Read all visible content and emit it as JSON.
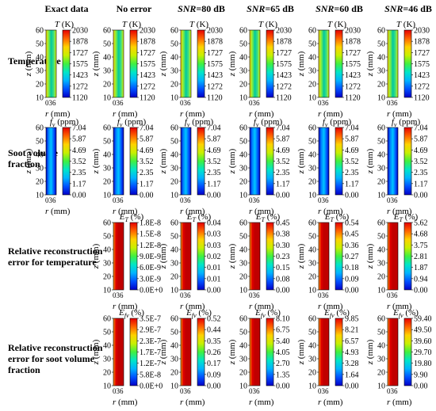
{
  "columns": [
    {
      "parts": [
        {
          "t": "Exact data",
          "i": false
        }
      ]
    },
    {
      "parts": [
        {
          "t": "No error",
          "i": false
        }
      ]
    },
    {
      "parts": [
        {
          "t": "SNR",
          "i": true
        },
        {
          "t": "=80 dB",
          "i": false
        }
      ]
    },
    {
      "parts": [
        {
          "t": "SNR",
          "i": true
        },
        {
          "t": "=65 dB",
          "i": false
        }
      ]
    },
    {
      "parts": [
        {
          "t": "SNR",
          "i": true
        },
        {
          "t": "=60 dB",
          "i": false
        }
      ]
    },
    {
      "parts": [
        {
          "t": "SNR",
          "i": true
        },
        {
          "t": "=46 dB",
          "i": false
        }
      ]
    }
  ],
  "rows": [
    {
      "label": "Temperature",
      "cb_var": "T",
      "cb_sub": "",
      "cb_unit": " (K)",
      "ticks": [
        "2030",
        "1878",
        "1727",
        "1575",
        "1423",
        "1272",
        "1120"
      ],
      "cols": [
        0,
        1,
        2,
        3,
        4,
        5
      ]
    },
    {
      "label": "Soot volume fraction",
      "cb_var": "f",
      "cb_sub": "v",
      "cb_unit": " (ppm)",
      "ticks": [
        "7.04",
        "5.87",
        "4.69",
        "3.52",
        "2.35",
        "1.17",
        "0.00"
      ],
      "cols": [
        0,
        1,
        2,
        3,
        4,
        5
      ]
    },
    {
      "label": "Relative reconstruction error for temperature",
      "cb_var": "E",
      "cb_sub": "T",
      "cb_unit": " (%)",
      "cols": [
        1,
        2,
        3,
        4,
        5
      ],
      "col_ticks": {
        "1": [
          "1.8E-8",
          "1.5E-8",
          "1.2E-8",
          "9.0E-9",
          "6.0E-9",
          "3.0E-9",
          "0.0E+0"
        ],
        "2": [
          "0.04",
          "0.03",
          "0.03",
          "0.02",
          "0.01",
          "0.01",
          "0.00"
        ],
        "3": [
          "0.45",
          "0.38",
          "0.30",
          "0.23",
          "0.15",
          "0.08",
          "0.00"
        ],
        "4": [
          "0.54",
          "0.45",
          "0.36",
          "0.27",
          "0.18",
          "0.09",
          "0.00"
        ],
        "5": [
          "5.62",
          "4.68",
          "3.75",
          "2.81",
          "1.87",
          "0.94",
          "0.00"
        ]
      }
    },
    {
      "label": "Relative reconstruction error for soot volume fraction",
      "cb_var": "E",
      "cb_sub": "fv",
      "cb_unit": " (%)",
      "cols": [
        1,
        2,
        3,
        4,
        5
      ],
      "col_ticks": {
        "1": [
          "3.5E-7",
          "2.9E-7",
          "2.3E-7",
          "1.7E-7",
          "1.2E-7",
          "5.8E-8",
          "0.0E+0"
        ],
        "2": [
          "0.52",
          "0.44",
          "0.35",
          "0.26",
          "0.17",
          "0.09",
          "0.00"
        ],
        "3": [
          "8.10",
          "6.75",
          "5.40",
          "4.05",
          "2.70",
          "1.35",
          "0.00"
        ],
        "4": [
          "9.85",
          "8.21",
          "6.57",
          "4.93",
          "3.28",
          "1.64",
          "0.00"
        ],
        "5": [
          "59.40",
          "49.50",
          "39.60",
          "29.70",
          "19.80",
          "9.90",
          "0.00"
        ]
      }
    }
  ],
  "axis": {
    "z_label": "z",
    "z_unit": " (mm)",
    "r_label": "r",
    "r_unit": " (mm)",
    "z_ticks": [
      "60",
      "50",
      "40",
      "30",
      "20",
      "10"
    ],
    "r_ticks": "036"
  },
  "colormap": [
    "#0000c8",
    "#0050ff",
    "#00b4ff",
    "#00e6c8",
    "#40f040",
    "#c8f000",
    "#ffd200",
    "#ff6400",
    "#e60000"
  ]
}
